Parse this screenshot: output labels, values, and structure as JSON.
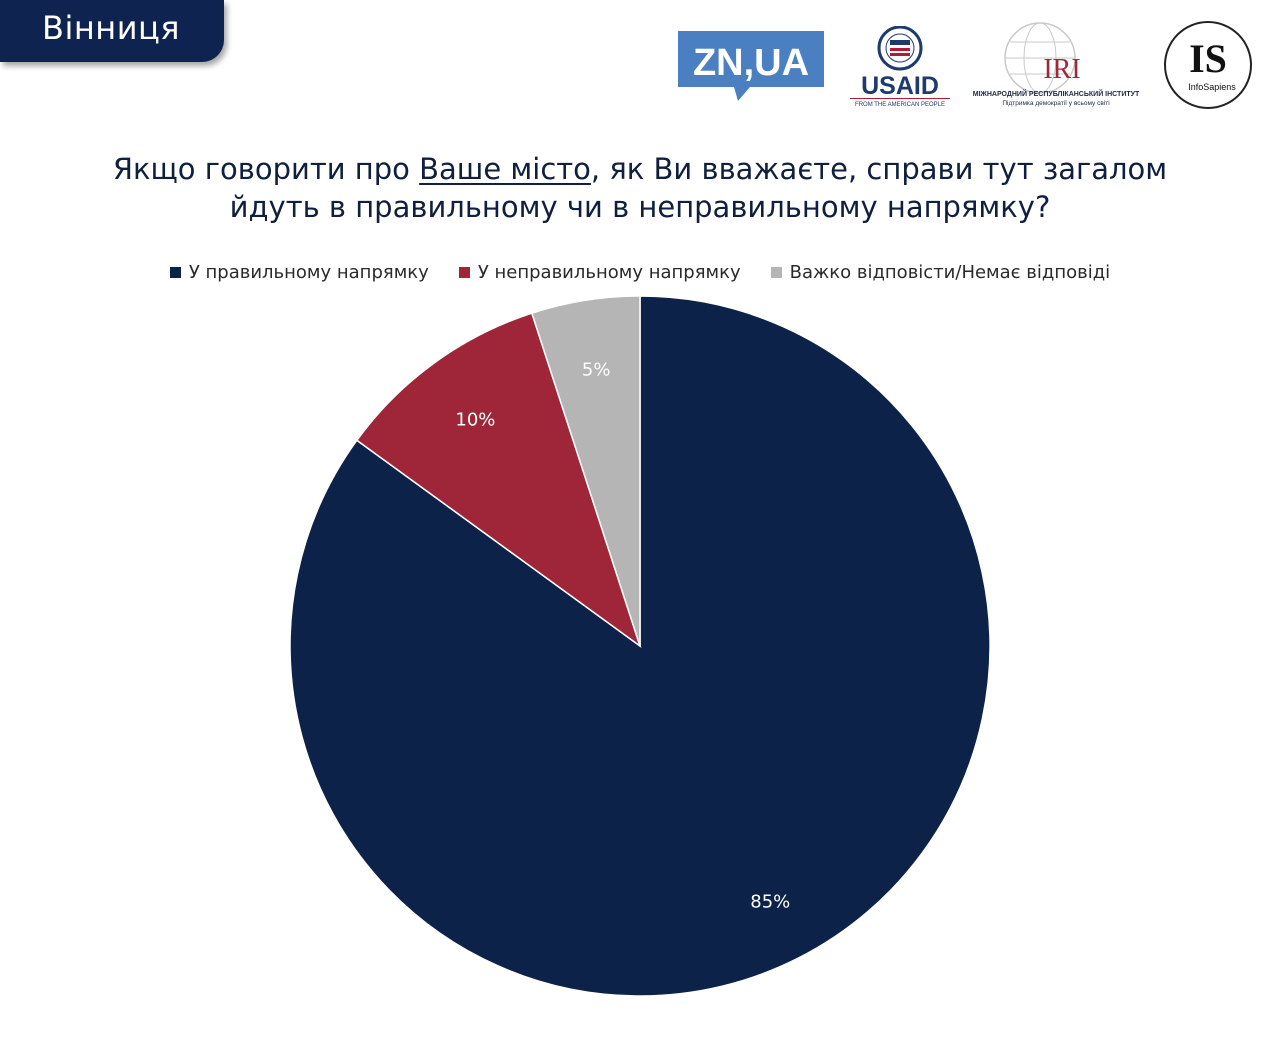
{
  "header": {
    "city": "Вінниця"
  },
  "logos": {
    "zn": "ZN,UA",
    "usaid": "USAID",
    "usaid_tagline": "FROM THE AMERICAN PEOPLE",
    "iri": "IRI",
    "iri_name": "МІЖНАРОДНИЙ РЕСПУБЛІКАНСЬКИЙ ІНСТИТУТ",
    "iri_tagline": "Підтримка демократії у всьому світі",
    "is": "IS",
    "is_name": "InfoSapiens"
  },
  "title": {
    "part1": "Якщо говорити про ",
    "underlined": "Ваше місто",
    "part2": ", як Ви вважаєте, справи тут загалом",
    "line2": "йдуть в правильному чи в неправильному напрямку?"
  },
  "chart_data": {
    "type": "pie",
    "categories": [
      "У правильному напрямку",
      "У неправильному напрямку",
      "Важко відповісти/Немає відповіді"
    ],
    "values": [
      85,
      10,
      5
    ],
    "labels": [
      "85%",
      "10%",
      "5%"
    ],
    "colors": [
      "#0d2248",
      "#9e2638",
      "#b5b5b5"
    ],
    "label_colors": [
      "#ffffff",
      "#ffffff",
      "#ffffff"
    ],
    "legend_position": "top",
    "start": "12 o'clock, clockwise"
  }
}
